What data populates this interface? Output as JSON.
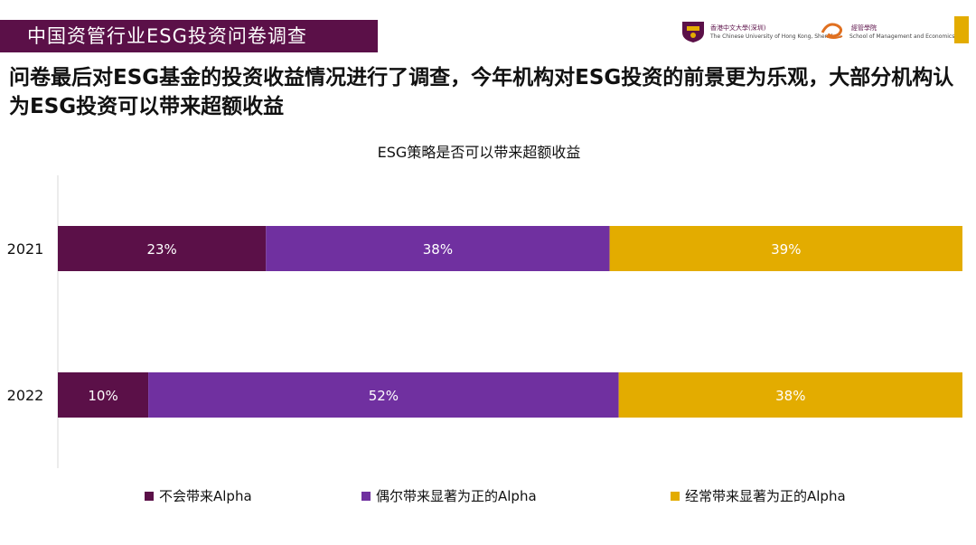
{
  "header": {
    "title": "中国资管行业ESG投资问卷调查"
  },
  "logos": {
    "cuhk_cn": "香港中文大學(深圳)",
    "cuhk_en": "The Chinese University of Hong Kong, Shenzhen",
    "sme_cn": "經管學院",
    "sme_en": "School of Management and Economics"
  },
  "subtitle": "问卷最后对ESG基金的投资收益情况进行了调查，今年机构对ESG投资的前景更为乐观，大部分机构认为ESG投资可以带来超额收益",
  "colors": {
    "series1": "#5b1048",
    "series2": "#7030a0",
    "series3": "#e3ac00",
    "header_bg": "#5b1048"
  },
  "chart_data": {
    "type": "bar",
    "orientation": "horizontal",
    "stacked": true,
    "title": "ESG策略是否可以带来超额收益",
    "categories": [
      "2021",
      "2022"
    ],
    "series": [
      {
        "name": "不会带来Alpha",
        "values": [
          23,
          10
        ],
        "labels": [
          "23%",
          "10%"
        ]
      },
      {
        "name": "偶尔带来显著为正的Alpha",
        "values": [
          38,
          52
        ],
        "labels": [
          "38%",
          "52%"
        ]
      },
      {
        "name": "经常带来显著为正的Alpha",
        "values": [
          39,
          38
        ],
        "labels": [
          "39%",
          "38%"
        ]
      }
    ],
    "xlim": [
      0,
      100
    ],
    "grid": false,
    "legend_position": "bottom"
  }
}
